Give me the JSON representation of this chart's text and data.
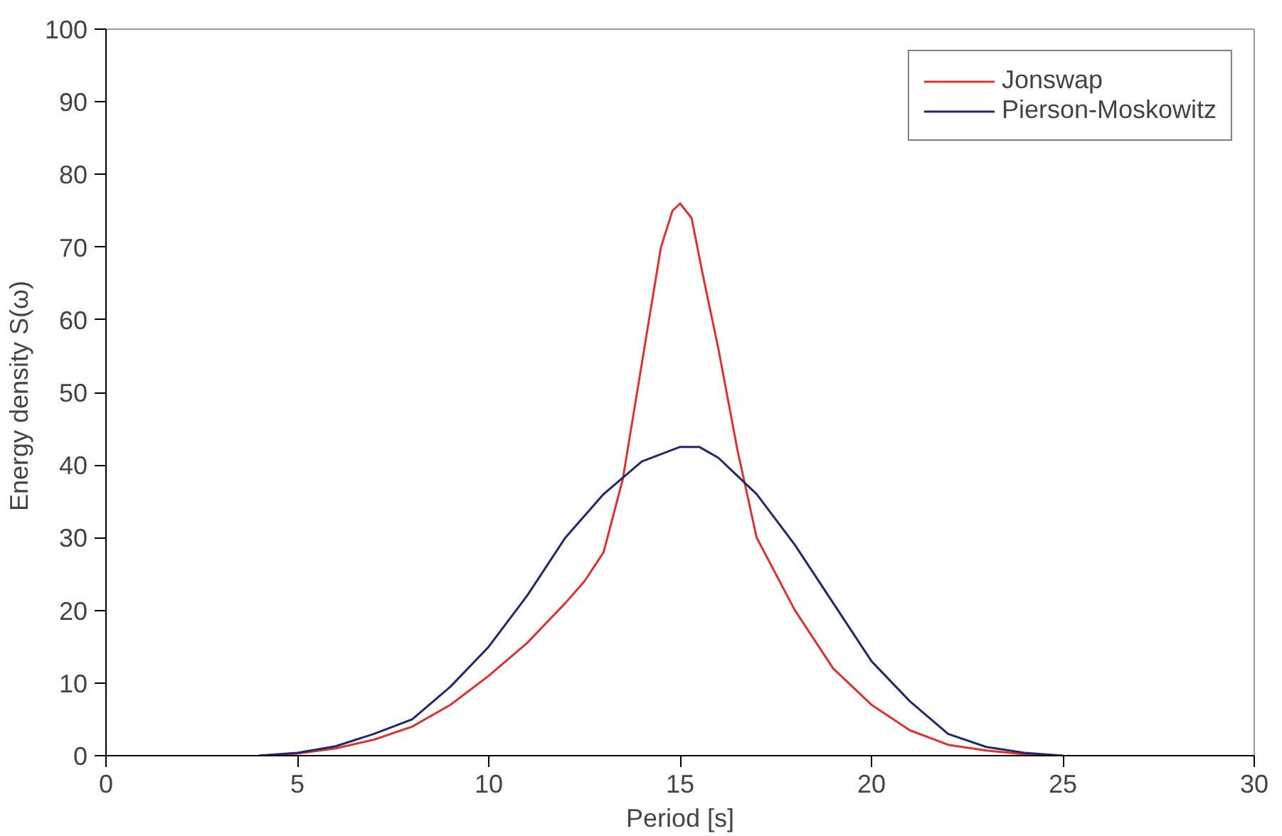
{
  "chart_data": {
    "type": "line",
    "xlabel": "Period [s]",
    "ylabel": "Energy density  S(ω)",
    "xlim": [
      0,
      30
    ],
    "ylim": [
      0,
      100
    ],
    "xticks": [
      0,
      5,
      10,
      15,
      20,
      25,
      30
    ],
    "yticks": [
      0,
      10,
      20,
      30,
      40,
      50,
      60,
      70,
      80,
      90,
      100
    ],
    "grid": false,
    "legend": "top right",
    "marker": "none",
    "line_style": "solid",
    "series": [
      {
        "name": "Jonswap",
        "color": "#e03030",
        "x": [
          4,
          5,
          6,
          7,
          8,
          9,
          10,
          11,
          12,
          12.5,
          13,
          13.5,
          14,
          14.5,
          14.8,
          15,
          15.3,
          15.6,
          16,
          16.5,
          17,
          18,
          19,
          20,
          21,
          22,
          23,
          24,
          25
        ],
        "values": [
          0,
          0.3,
          1,
          2.2,
          4,
          7,
          11,
          15.5,
          21,
          24,
          28,
          38,
          54,
          70,
          75,
          76,
          74,
          66,
          56,
          42,
          30,
          20,
          12,
          7,
          3.5,
          1.5,
          0.7,
          0.2,
          0
        ]
      },
      {
        "name": "Pierson-Moskowitz",
        "color": "#1f2a6e",
        "x": [
          4,
          5,
          6,
          7,
          8,
          9,
          10,
          11,
          12,
          13,
          14,
          15,
          15.5,
          16,
          17,
          18,
          19,
          20,
          21,
          22,
          23,
          24,
          25
        ],
        "values": [
          0,
          0.4,
          1.3,
          3,
          5,
          9.5,
          15,
          22,
          30,
          36,
          40.5,
          42.5,
          42.5,
          41,
          36,
          29,
          21,
          13,
          7.5,
          3,
          1.2,
          0.4,
          0
        ]
      }
    ]
  }
}
